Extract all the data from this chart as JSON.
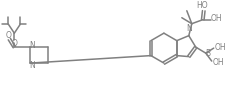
{
  "bg": "#ffffff",
  "lc": "#808080",
  "tc": "#808080",
  "lw": 1.1,
  "fs": 5.5,
  "xlim": [
    0,
    247
  ],
  "ylim": [
    0,
    90
  ],
  "figsize": [
    2.47,
    0.9
  ],
  "dpi": 100
}
